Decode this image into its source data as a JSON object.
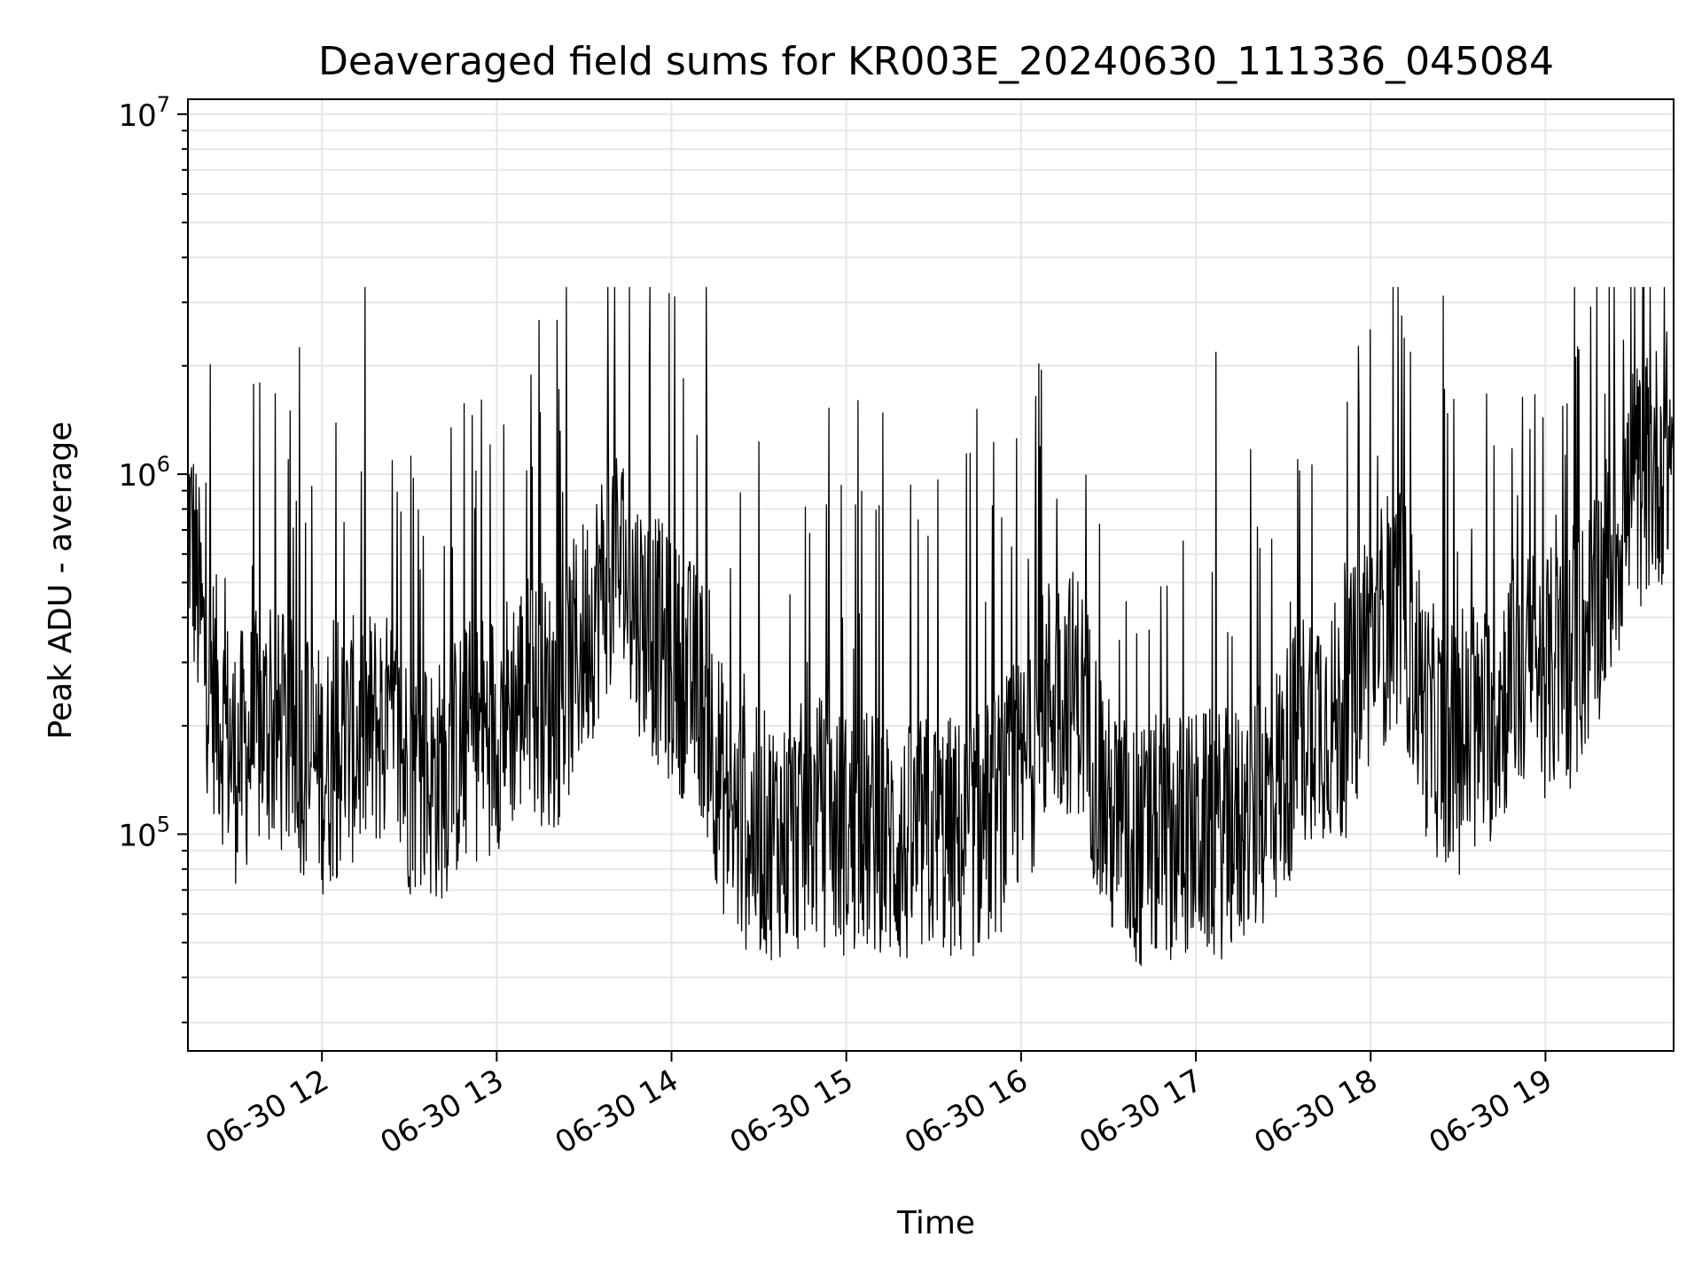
{
  "chart_data": {
    "type": "line",
    "title": "Deaveraged field sums for KR003E_20240630_111336_045084",
    "xlabel": "Time",
    "ylabel": "Peak ADU - average",
    "yscale": "log",
    "ylim": [
      25000,
      11000000
    ],
    "xlim": [
      "2024-06-30 11:14",
      "2024-06-30 19:44"
    ],
    "grid": true,
    "line_color": "#000000",
    "x_ticks": [
      {
        "t": "2024-06-30 12:00",
        "label": "06-30 12"
      },
      {
        "t": "2024-06-30 13:00",
        "label": "06-30 13"
      },
      {
        "t": "2024-06-30 14:00",
        "label": "06-30 14"
      },
      {
        "t": "2024-06-30 15:00",
        "label": "06-30 15"
      },
      {
        "t": "2024-06-30 16:00",
        "label": "06-30 16"
      },
      {
        "t": "2024-06-30 17:00",
        "label": "06-30 17"
      },
      {
        "t": "2024-06-30 18:00",
        "label": "06-30 18"
      },
      {
        "t": "2024-06-30 19:00",
        "label": "06-30 19"
      }
    ],
    "y_ticks": [
      {
        "value": 100000,
        "base": "10",
        "exp": "5"
      },
      {
        "value": 1000000,
        "base": "10",
        "exp": "6"
      },
      {
        "value": 10000000,
        "base": "10",
        "exp": "7"
      }
    ],
    "series": [
      {
        "x": [
          "2024-06-30 11:14",
          "2024-06-30 11:20",
          "2024-06-30 11:30",
          "2024-06-30 11:40",
          "2024-06-30 11:50",
          "2024-06-30 12:00",
          "2024-06-30 12:10",
          "2024-06-30 12:20",
          "2024-06-30 12:30",
          "2024-06-30 12:40",
          "2024-06-30 12:50",
          "2024-06-30 13:00",
          "2024-06-30 13:10",
          "2024-06-30 13:20",
          "2024-06-30 13:30",
          "2024-06-30 13:40",
          "2024-06-30 13:50",
          "2024-06-30 14:00",
          "2024-06-30 14:10",
          "2024-06-30 14:20",
          "2024-06-30 14:30",
          "2024-06-30 14:40",
          "2024-06-30 14:50",
          "2024-06-30 15:00",
          "2024-06-30 15:10",
          "2024-06-30 15:20",
          "2024-06-30 15:30",
          "2024-06-30 15:40",
          "2024-06-30 15:50",
          "2024-06-30 16:00",
          "2024-06-30 16:10",
          "2024-06-30 16:20",
          "2024-06-30 16:30",
          "2024-06-30 16:40",
          "2024-06-30 16:50",
          "2024-06-30 17:00",
          "2024-06-30 17:10",
          "2024-06-30 17:20",
          "2024-06-30 17:30",
          "2024-06-30 17:40",
          "2024-06-30 17:50",
          "2024-06-30 18:00",
          "2024-06-30 18:10",
          "2024-06-30 18:20",
          "2024-06-30 18:30",
          "2024-06-30 18:40",
          "2024-06-30 18:50",
          "2024-06-30 19:00",
          "2024-06-30 19:10",
          "2024-06-30 19:20",
          "2024-06-30 19:30",
          "2024-06-30 19:40",
          "2024-06-30 19:44"
        ],
        "values": [
          800000,
          300000,
          160000,
          200000,
          180000,
          150000,
          180000,
          200000,
          150000,
          140000,
          180000,
          200000,
          250000,
          220000,
          350000,
          600000,
          400000,
          300000,
          250000,
          110000,
          100000,
          100000,
          110000,
          100000,
          100000,
          90000,
          100000,
          95000,
          110000,
          140000,
          250000,
          250000,
          110000,
          90000,
          100000,
          100000,
          100000,
          110000,
          150000,
          220000,
          200000,
          350000,
          450000,
          200000,
          170000,
          200000,
          280000,
          280000,
          300000,
          500000,
          900000,
          1100000,
          1200000
        ]
      }
    ]
  }
}
